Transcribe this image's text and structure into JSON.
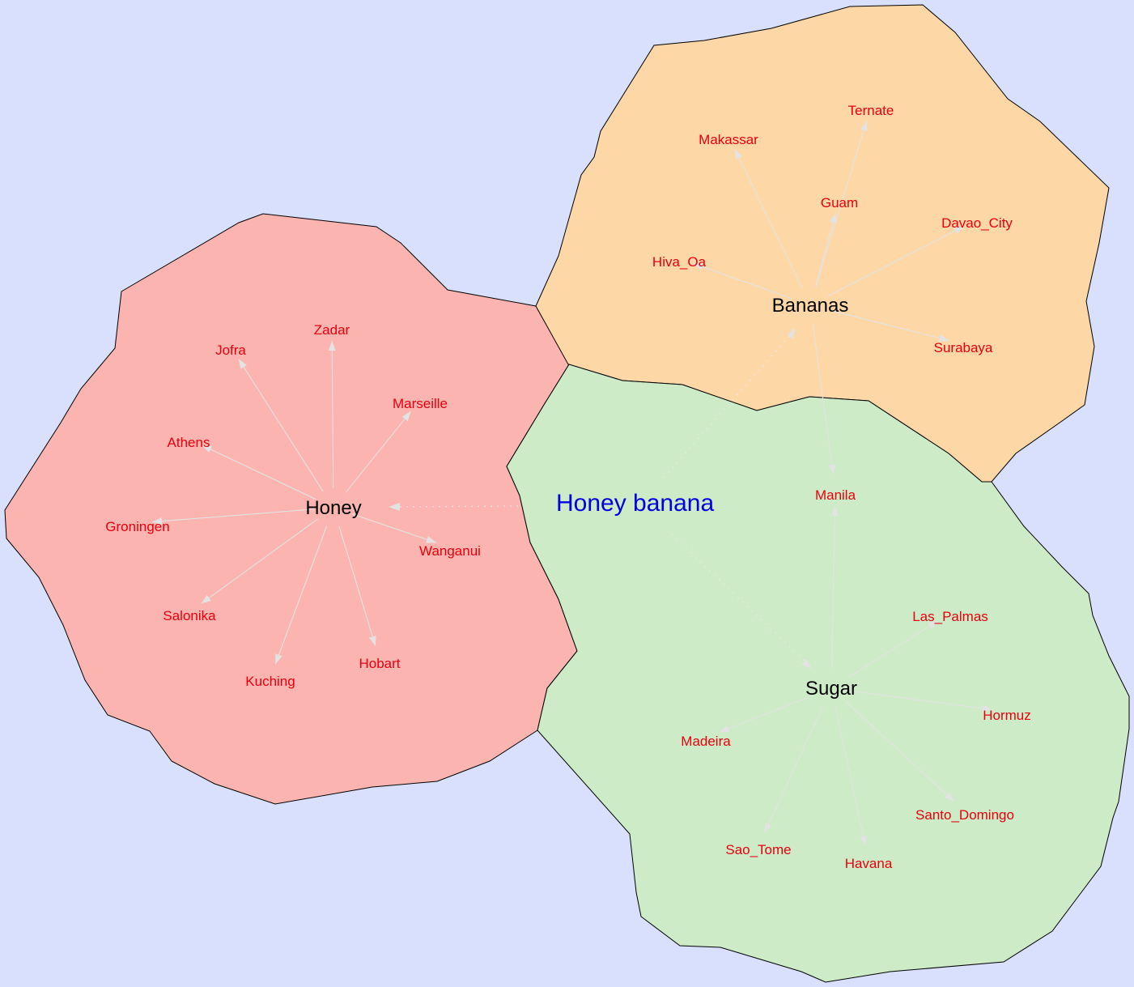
{
  "colors": {
    "background": "#d9e0fd",
    "honey_region": "#fbb4af",
    "bananas_region": "#fed7a6",
    "sugar_region": "#ccebc6",
    "edge": "#e3e3e3",
    "hub_text": "#000000",
    "city_text": "#e8000e",
    "title_text": "#0000e0"
  },
  "title": "Honey banana",
  "clusters": [
    {
      "hub": "Honey",
      "cities": [
        "Zadar",
        "Jofra",
        "Marseille",
        "Athens",
        "Groningen",
        "Wanganui",
        "Salonika",
        "Kuching",
        "Hobart"
      ]
    },
    {
      "hub": "Bananas",
      "cities": [
        "Ternate",
        "Makassar",
        "Guam",
        "Davao_City",
        "Hiva_Oa",
        "Surabaya"
      ]
    },
    {
      "hub": "Sugar",
      "cities": [
        "Manila",
        "Las_Palmas",
        "Hormuz",
        "Madeira",
        "Santo_Domingo",
        "Sao_Tome",
        "Havana"
      ]
    }
  ]
}
